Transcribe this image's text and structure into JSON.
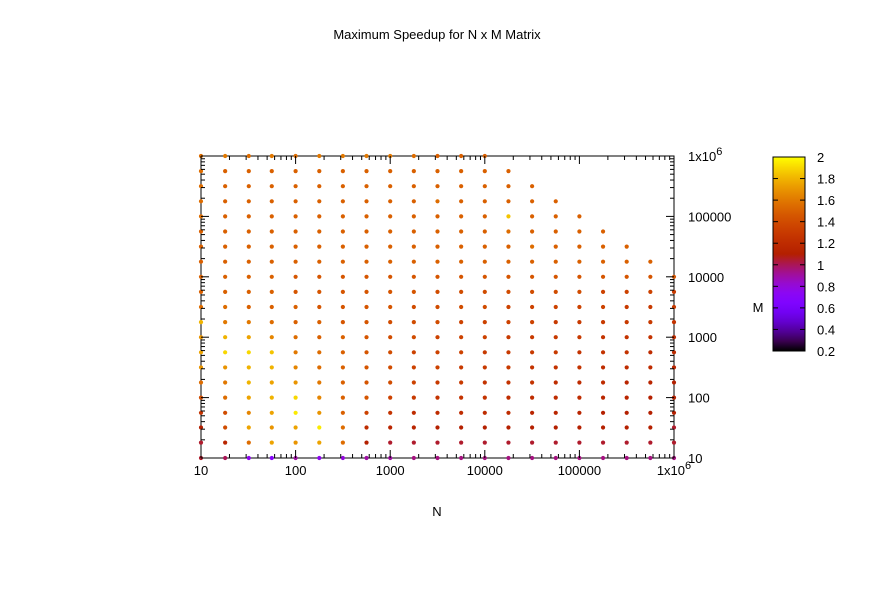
{
  "chart_data": {
    "type": "scatter",
    "title": "Maximum Speedup for N x M Matrix",
    "xlabel": "N",
    "ylabel": "M",
    "xscale": "log",
    "yscale": "log",
    "xlim": [
      10,
      1000000
    ],
    "ylim": [
      10,
      1000000
    ],
    "x_ticks": [
      {
        "value": 10,
        "label": "10"
      },
      {
        "value": 100,
        "label": "100"
      },
      {
        "value": 1000,
        "label": "1000"
      },
      {
        "value": 10000,
        "label": "10000"
      },
      {
        "value": 100000,
        "label": "100000"
      },
      {
        "value": 1000000,
        "label": "1x10",
        "sup": "6"
      }
    ],
    "y_ticks": [
      {
        "value": 10,
        "label": "10"
      },
      {
        "value": 100,
        "label": "100"
      },
      {
        "value": 1000,
        "label": "1000"
      },
      {
        "value": 10000,
        "label": "10000"
      },
      {
        "value": 100000,
        "label": "100000"
      },
      {
        "value": 1000000,
        "label": "1x10",
        "sup": "6"
      }
    ],
    "grid": false,
    "grid_points": {
      "x": [
        10,
        18,
        32,
        56,
        100,
        178,
        316,
        562,
        1000,
        1778,
        3162,
        5623,
        10000,
        17783,
        31623,
        56234,
        100000,
        177828,
        316228,
        562341,
        1000000
      ],
      "y": [
        10,
        18,
        32,
        56,
        100,
        178,
        316,
        562,
        1000,
        1778,
        3162,
        5623,
        10000,
        17783,
        31623,
        56234,
        100000,
        177828,
        316228,
        562341,
        1000000
      ],
      "max_product": 10000000000,
      "note_rows": "speedup[i][j]: i = M index (ascending from 10), j = N index (ascending from 10)",
      "speedup": [
        [
          1.05,
          1.0,
          0.75,
          0.7,
          0.9,
          0.75,
          0.8,
          0.9,
          0.9,
          0.95,
          0.95,
          0.95,
          0.95,
          0.95,
          0.95,
          0.95,
          0.95,
          0.95,
          0.95,
          0.95,
          0.95
        ],
        [
          1.05,
          1.15,
          1.55,
          1.75,
          1.7,
          1.75,
          1.55,
          1.1,
          1.05,
          1.05,
          1.05,
          1.05,
          1.05,
          1.05,
          1.05,
          1.05,
          1.05,
          1.05,
          1.05,
          1.05,
          1.05
        ],
        [
          1.1,
          1.4,
          1.75,
          1.7,
          1.75,
          1.95,
          1.55,
          1.2,
          1.15,
          1.15,
          1.1,
          1.1,
          1.1,
          1.1,
          1.1,
          1.1,
          1.1,
          1.1,
          1.1,
          1.1,
          1.05
        ],
        [
          1.25,
          1.4,
          1.65,
          1.75,
          1.95,
          1.7,
          1.5,
          1.35,
          1.25,
          1.2,
          1.2,
          1.2,
          1.2,
          1.2,
          1.15,
          1.15,
          1.15,
          1.1,
          1.1,
          1.1,
          1.1
        ],
        [
          1.4,
          1.55,
          1.75,
          1.8,
          1.9,
          1.65,
          1.5,
          1.45,
          1.35,
          1.3,
          1.25,
          1.25,
          1.25,
          1.2,
          1.2,
          1.2,
          1.2,
          1.15,
          1.15,
          1.1,
          1.1
        ],
        [
          1.55,
          1.6,
          1.8,
          1.75,
          1.7,
          1.6,
          1.5,
          1.45,
          1.4,
          1.35,
          1.3,
          1.3,
          1.25,
          1.25,
          1.25,
          1.2,
          1.2,
          1.2,
          1.15,
          1.15,
          1.1
        ],
        [
          1.7,
          1.7,
          1.8,
          1.8,
          1.65,
          1.55,
          1.5,
          1.45,
          1.4,
          1.35,
          1.35,
          1.3,
          1.3,
          1.3,
          1.25,
          1.25,
          1.25,
          1.2,
          1.2,
          1.2,
          1.15
        ],
        [
          1.75,
          1.9,
          1.9,
          1.85,
          1.6,
          1.55,
          1.5,
          1.45,
          1.4,
          1.35,
          1.35,
          1.35,
          1.3,
          1.3,
          1.3,
          1.3,
          1.25,
          1.25,
          1.25,
          1.2,
          1.2
        ],
        [
          1.7,
          1.8,
          1.75,
          1.65,
          1.55,
          1.5,
          1.5,
          1.45,
          1.4,
          1.4,
          1.35,
          1.35,
          1.35,
          1.3,
          1.3,
          1.3,
          1.3,
          1.25,
          1.25,
          1.25,
          1.2
        ],
        [
          1.8,
          1.6,
          1.6,
          1.55,
          1.5,
          1.5,
          1.45,
          1.45,
          1.4,
          1.4,
          1.4,
          1.35,
          1.35,
          1.35,
          1.35,
          1.3,
          1.3,
          1.3,
          1.3,
          1.3,
          1.25
        ],
        [
          1.55,
          1.55,
          1.5,
          1.5,
          1.5,
          1.45,
          1.45,
          1.45,
          1.45,
          1.4,
          1.4,
          1.4,
          1.4,
          1.35,
          1.35,
          1.35,
          1.35,
          1.35,
          1.3,
          1.3,
          1.3
        ],
        [
          1.5,
          1.5,
          1.5,
          1.5,
          1.45,
          1.45,
          1.45,
          1.45,
          1.45,
          1.45,
          1.4,
          1.4,
          1.4,
          1.4,
          1.4,
          1.4,
          1.4,
          1.35,
          1.35,
          1.35,
          1.3
        ],
        [
          1.5,
          1.5,
          1.5,
          1.5,
          1.45,
          1.45,
          1.45,
          1.45,
          1.45,
          1.45,
          1.45,
          1.45,
          1.45,
          1.45,
          1.45,
          1.45,
          1.45,
          1.45,
          1.45,
          1.45,
          1.45
        ],
        [
          1.5,
          1.5,
          1.5,
          1.5,
          1.5,
          1.5,
          1.5,
          1.5,
          1.5,
          1.5,
          1.5,
          1.5,
          1.5,
          1.5,
          1.5,
          1.5,
          1.5,
          1.5,
          1.5,
          1.5,
          1.5
        ],
        [
          1.5,
          1.5,
          1.5,
          1.5,
          1.5,
          1.5,
          1.5,
          1.5,
          1.5,
          1.5,
          1.5,
          1.5,
          1.5,
          1.5,
          1.55,
          1.5,
          1.5,
          1.5,
          1.5,
          1.5,
          1.5
        ],
        [
          1.5,
          1.5,
          1.5,
          1.5,
          1.5,
          1.5,
          1.5,
          1.5,
          1.5,
          1.5,
          1.5,
          1.5,
          1.5,
          1.55,
          1.5,
          1.5,
          1.5,
          1.5,
          1.5,
          1.5,
          1.5
        ],
        [
          1.55,
          1.5,
          1.5,
          1.5,
          1.5,
          1.5,
          1.5,
          1.5,
          1.5,
          1.5,
          1.5,
          1.5,
          1.5,
          1.85,
          1.5,
          1.5,
          1.5,
          1.5,
          1.5,
          1.5,
          1.5
        ],
        [
          1.55,
          1.5,
          1.5,
          1.5,
          1.5,
          1.5,
          1.5,
          1.5,
          1.5,
          1.5,
          1.55,
          1.5,
          1.5,
          1.5,
          1.5,
          1.5,
          1.5,
          1.5,
          1.5,
          1.5,
          1.5
        ],
        [
          1.55,
          1.5,
          1.5,
          1.5,
          1.5,
          1.5,
          1.5,
          1.5,
          1.5,
          1.5,
          1.5,
          1.5,
          1.5,
          1.5,
          1.5,
          1.5,
          1.5,
          1.5,
          1.5,
          1.5,
          1.5
        ],
        [
          1.55,
          1.5,
          1.5,
          1.5,
          1.5,
          1.5,
          1.5,
          1.5,
          1.5,
          1.5,
          1.5,
          1.5,
          1.5,
          1.5,
          1.5,
          1.5,
          1.5,
          1.5,
          1.5,
          1.5,
          1.5
        ],
        [
          1.55,
          1.6,
          1.55,
          1.6,
          1.55,
          1.6,
          1.6,
          1.6,
          1.6,
          1.55,
          1.5,
          1.5,
          1.5,
          1.5,
          1.5,
          1.5,
          1.5,
          1.5,
          1.5,
          1.5,
          1.5
        ]
      ]
    },
    "colorbar": {
      "range": [
        0.2,
        2
      ],
      "ticks": [
        "0.2",
        "0.4",
        "0.6",
        "0.8",
        "1",
        "1.2",
        "1.4",
        "1.6",
        "1.8",
        "2"
      ],
      "palette": "gnuplot"
    }
  }
}
